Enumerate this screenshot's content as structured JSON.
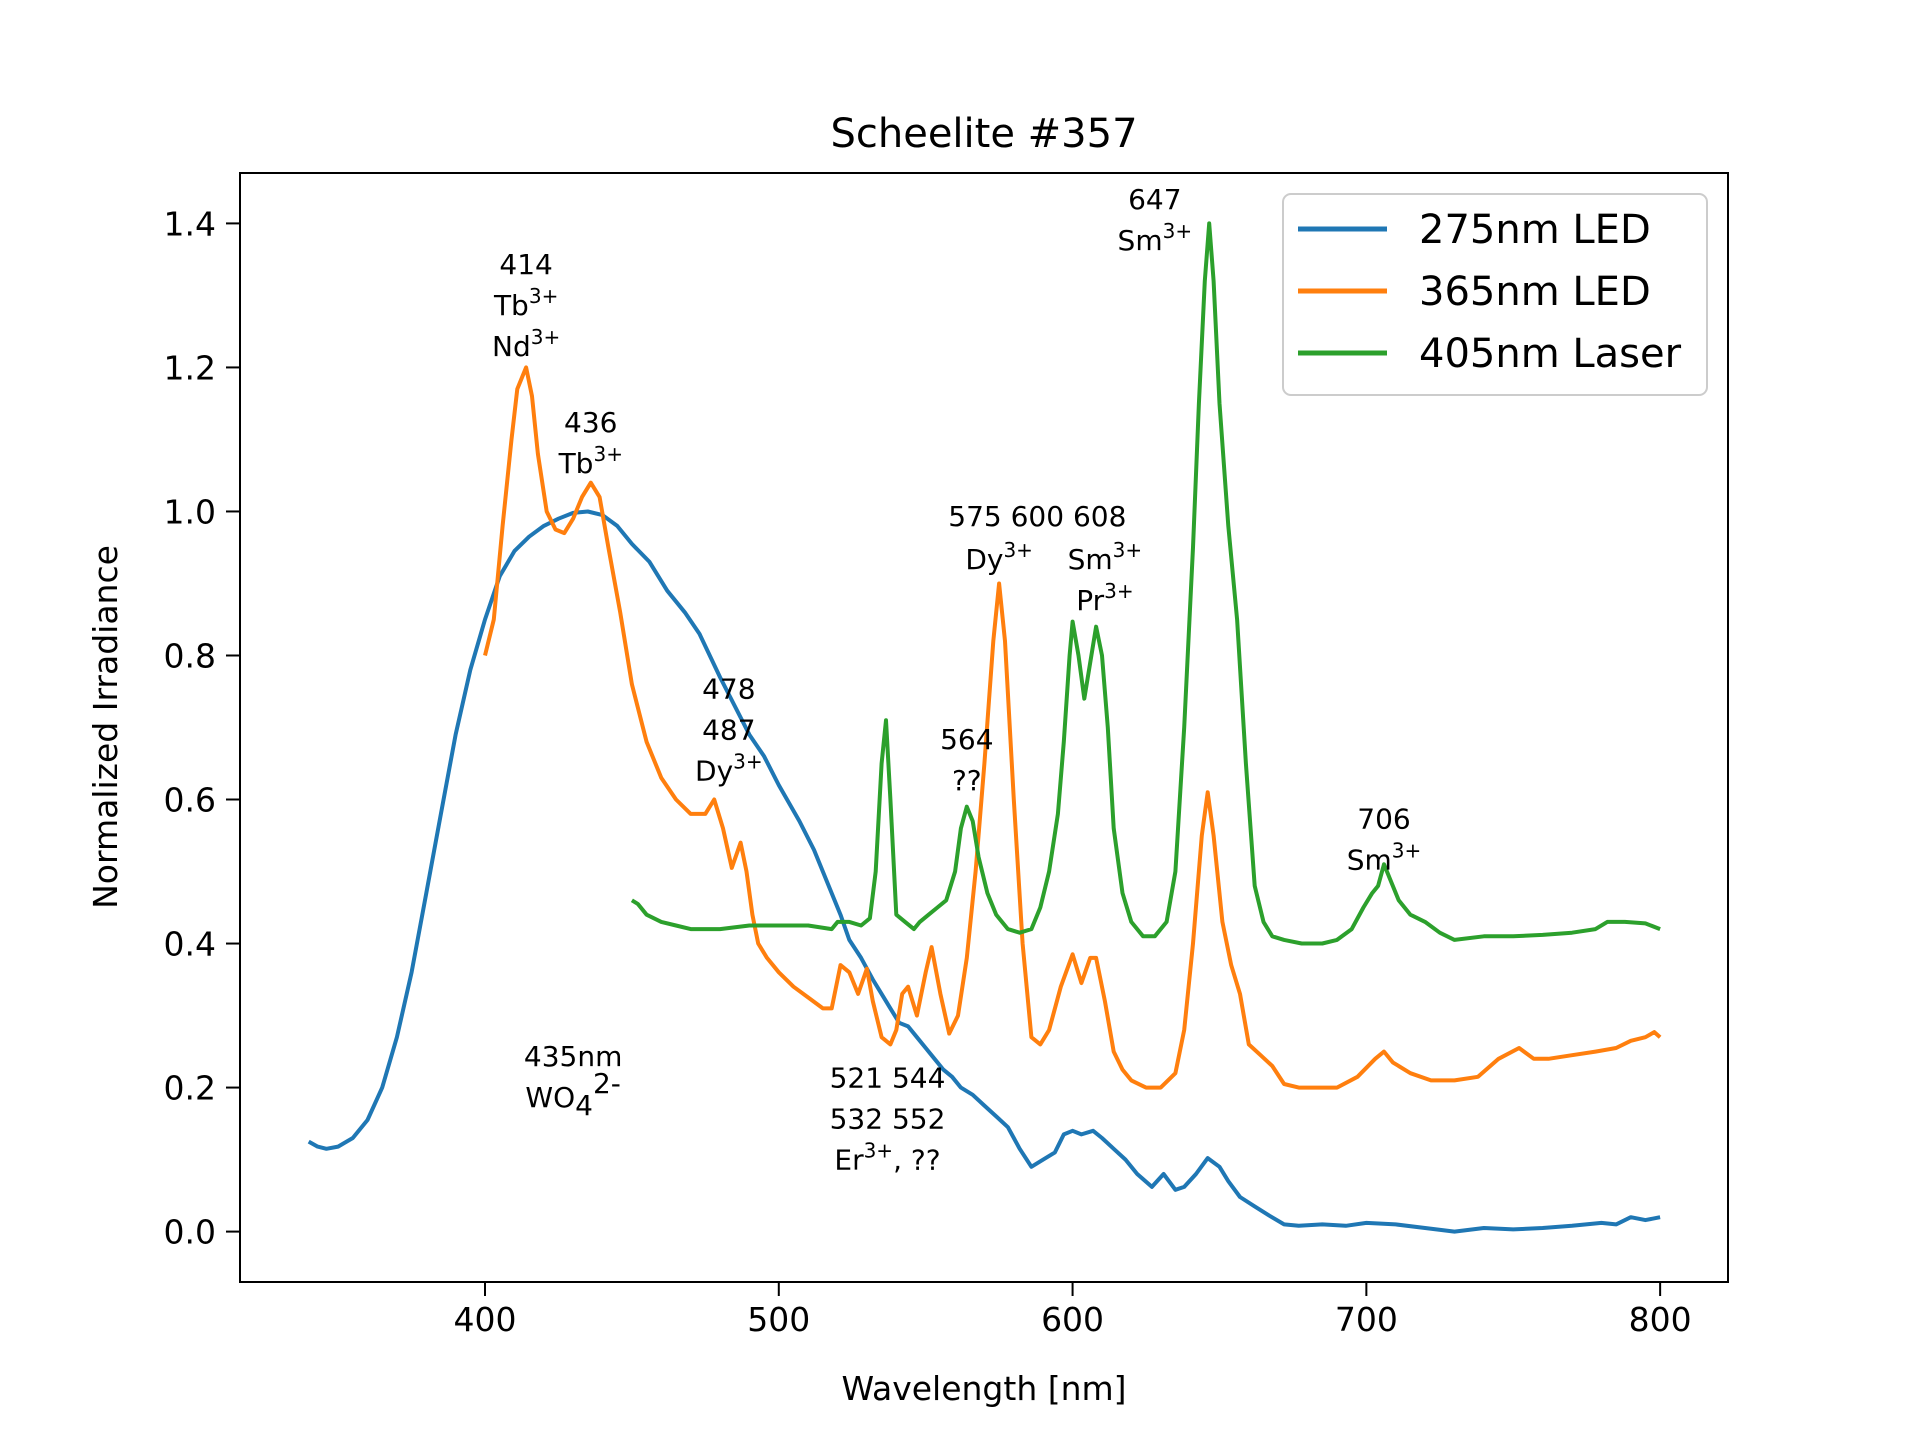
{
  "chart_data": {
    "type": "line",
    "title": "Scheelite #357",
    "xlabel": "Wavelength [nm]",
    "ylabel": "Normalized Irradiance",
    "xlim": [
      316.6,
      823.1
    ],
    "ylim": [
      -0.07,
      1.47
    ],
    "xticks": [
      400,
      500,
      600,
      700,
      800
    ],
    "xtick_labels": [
      "400",
      "500",
      "600",
      "700",
      "800"
    ],
    "yticks": [
      0.0,
      0.2,
      0.4,
      0.6,
      0.8,
      1.0,
      1.2,
      1.4
    ],
    "ytick_labels": [
      "0.0",
      "0.2",
      "0.4",
      "0.6",
      "0.8",
      "1.0",
      "1.2",
      "1.4"
    ],
    "grid": false,
    "legend_position": "top-right",
    "series": [
      {
        "name": "275nm LED",
        "color": "#1f77b4",
        "x": [
          340,
          343,
          346,
          350,
          355,
          360,
          365,
          370,
          375,
          380,
          385,
          390,
          395,
          400,
          405,
          410,
          415,
          420,
          425,
          430,
          435,
          440,
          445,
          450,
          456,
          462,
          468,
          473,
          480,
          485,
          490,
          495,
          500,
          507,
          512,
          517,
          521,
          524,
          528,
          532,
          535,
          538,
          541,
          544,
          547,
          550,
          553,
          556,
          559,
          562,
          566,
          570,
          574,
          578,
          582,
          586,
          590,
          594,
          597,
          600,
          603,
          607,
          610,
          614,
          618,
          622,
          627,
          631,
          635,
          638,
          642,
          646,
          650,
          653,
          657,
          662,
          667,
          672,
          677,
          685,
          693,
          700,
          710,
          720,
          730,
          740,
          750,
          760,
          770,
          780,
          785,
          790,
          795,
          800
        ],
        "y": [
          0.125,
          0.118,
          0.115,
          0.118,
          0.13,
          0.155,
          0.2,
          0.27,
          0.36,
          0.47,
          0.58,
          0.69,
          0.78,
          0.85,
          0.91,
          0.945,
          0.965,
          0.98,
          0.99,
          0.998,
          1.0,
          0.995,
          0.98,
          0.955,
          0.93,
          0.89,
          0.86,
          0.83,
          0.77,
          0.73,
          0.69,
          0.66,
          0.62,
          0.57,
          0.53,
          0.48,
          0.44,
          0.405,
          0.38,
          0.35,
          0.33,
          0.31,
          0.29,
          0.285,
          0.27,
          0.255,
          0.24,
          0.225,
          0.215,
          0.2,
          0.19,
          0.175,
          0.16,
          0.145,
          0.115,
          0.09,
          0.1,
          0.11,
          0.135,
          0.14,
          0.135,
          0.14,
          0.13,
          0.115,
          0.1,
          0.08,
          0.062,
          0.08,
          0.058,
          0.062,
          0.08,
          0.102,
          0.09,
          0.07,
          0.048,
          0.035,
          0.022,
          0.01,
          0.008,
          0.01,
          0.008,
          0.012,
          0.01,
          0.005,
          0.0,
          0.005,
          0.003,
          0.005,
          0.008,
          0.012,
          0.01,
          0.02,
          0.016,
          0.02
        ]
      },
      {
        "name": "365nm LED",
        "color": "#ff7f0e",
        "x": [
          400,
          403,
          406,
          409,
          411,
          414,
          416,
          418,
          421,
          424,
          427,
          430,
          433,
          436,
          439,
          442,
          446,
          450,
          455,
          460,
          465,
          470,
          475,
          478,
          481,
          484,
          487,
          489,
          491,
          493,
          496,
          500,
          505,
          510,
          515,
          518,
          521,
          524,
          527,
          530,
          532,
          535,
          538,
          540,
          542,
          544,
          547,
          550,
          552,
          555,
          558,
          561,
          564,
          567,
          570,
          573,
          575,
          577,
          580,
          583,
          586,
          589,
          592,
          596,
          600,
          603,
          606,
          608,
          611,
          614,
          617,
          620,
          625,
          630,
          635,
          638,
          641,
          644,
          646,
          648,
          651,
          654,
          657,
          660,
          664,
          668,
          672,
          677,
          683,
          690,
          697,
          703,
          706,
          709,
          715,
          722,
          730,
          738,
          745,
          752,
          757,
          762,
          770,
          778,
          785,
          790,
          795,
          798,
          800
        ],
        "y": [
          0.8,
          0.85,
          0.98,
          1.1,
          1.17,
          1.2,
          1.16,
          1.08,
          1.0,
          0.975,
          0.97,
          0.99,
          1.02,
          1.04,
          1.02,
          0.95,
          0.86,
          0.76,
          0.68,
          0.63,
          0.6,
          0.58,
          0.58,
          0.6,
          0.56,
          0.505,
          0.54,
          0.5,
          0.44,
          0.4,
          0.38,
          0.36,
          0.34,
          0.325,
          0.31,
          0.31,
          0.37,
          0.36,
          0.33,
          0.365,
          0.32,
          0.27,
          0.26,
          0.28,
          0.33,
          0.34,
          0.3,
          0.36,
          0.395,
          0.33,
          0.275,
          0.3,
          0.38,
          0.5,
          0.65,
          0.82,
          0.9,
          0.82,
          0.6,
          0.4,
          0.27,
          0.26,
          0.28,
          0.34,
          0.385,
          0.345,
          0.38,
          0.38,
          0.32,
          0.25,
          0.225,
          0.21,
          0.2,
          0.2,
          0.22,
          0.28,
          0.4,
          0.55,
          0.61,
          0.55,
          0.43,
          0.37,
          0.33,
          0.26,
          0.245,
          0.23,
          0.205,
          0.2,
          0.2,
          0.2,
          0.215,
          0.24,
          0.25,
          0.235,
          0.22,
          0.21,
          0.21,
          0.215,
          0.24,
          0.255,
          0.24,
          0.24,
          0.245,
          0.25,
          0.255,
          0.265,
          0.27,
          0.277,
          0.27
        ]
      },
      {
        "name": "405nm Laser",
        "color": "#2ca02c",
        "x": [
          450,
          452,
          455,
          460,
          465,
          470,
          480,
          490,
          500,
          510,
          518,
          520,
          524,
          528,
          531,
          533,
          535,
          536.5,
          538,
          540,
          543,
          546,
          548,
          551,
          554,
          557,
          560,
          562,
          564,
          566,
          568,
          571,
          574,
          578,
          582,
          586,
          589,
          592,
          595,
          597,
          599,
          600,
          602,
          604,
          606,
          608,
          610,
          612,
          614,
          617,
          620,
          624,
          628,
          632,
          635,
          638,
          641,
          643,
          645,
          646.5,
          648,
          650,
          653,
          656,
          659,
          662,
          665,
          668,
          672,
          678,
          685,
          690,
          695,
          699,
          702,
          704,
          706,
          708,
          711,
          715,
          720,
          725,
          730,
          740,
          750,
          760,
          770,
          778,
          782,
          788,
          795,
          800
        ],
        "y": [
          0.46,
          0.455,
          0.44,
          0.43,
          0.425,
          0.42,
          0.42,
          0.425,
          0.425,
          0.425,
          0.42,
          0.43,
          0.43,
          0.425,
          0.435,
          0.5,
          0.65,
          0.71,
          0.6,
          0.44,
          0.43,
          0.42,
          0.43,
          0.44,
          0.45,
          0.46,
          0.5,
          0.56,
          0.59,
          0.57,
          0.52,
          0.47,
          0.44,
          0.42,
          0.415,
          0.42,
          0.45,
          0.5,
          0.58,
          0.68,
          0.8,
          0.847,
          0.8,
          0.74,
          0.79,
          0.84,
          0.8,
          0.7,
          0.56,
          0.47,
          0.43,
          0.41,
          0.41,
          0.43,
          0.5,
          0.7,
          0.95,
          1.15,
          1.32,
          1.4,
          1.32,
          1.15,
          0.98,
          0.85,
          0.65,
          0.48,
          0.43,
          0.41,
          0.405,
          0.4,
          0.4,
          0.405,
          0.42,
          0.45,
          0.47,
          0.48,
          0.51,
          0.49,
          0.46,
          0.44,
          0.43,
          0.415,
          0.405,
          0.41,
          0.41,
          0.412,
          0.415,
          0.42,
          0.43,
          0.43,
          0.428,
          0.42
        ]
      }
    ],
    "annotations": [
      {
        "lines": [
          {
            "text": "414"
          },
          {
            "text": "Tb",
            "sup": "3+"
          },
          {
            "text": "Nd",
            "sup": "3+"
          }
        ],
        "x": 414,
        "y": 1.33
      },
      {
        "lines": [
          {
            "text": "436"
          },
          {
            "text": "Tb",
            "sup": "3+"
          }
        ],
        "x": 436,
        "y": 1.11
      },
      {
        "lines": [
          {
            "text": "478"
          },
          {
            "text": "487"
          },
          {
            "text": "Dy",
            "sup": "3+"
          }
        ],
        "x": 483,
        "y": 0.74
      },
      {
        "lines": [
          {
            "text": "564"
          },
          {
            "text": "??"
          }
        ],
        "x": 564,
        "y": 0.67
      },
      {
        "lines": [
          {
            "text": "575 600 608"
          }
        ],
        "x": 588,
        "y": 0.98
      },
      {
        "lines": [
          {
            "text": "Dy",
            "sup": "3+"
          }
        ],
        "x": 575,
        "y": 0.92
      },
      {
        "lines": [
          {
            "text": "Sm",
            "sup": "3+"
          },
          {
            "text": "Pr",
            "sup": "3+"
          }
        ],
        "x": 611,
        "y": 0.92
      },
      {
        "lines": [
          {
            "text": "647"
          },
          {
            "text": "Sm",
            "sup": "3+"
          }
        ],
        "x": 628,
        "y": 1.42
      },
      {
        "lines": [
          {
            "text": "706"
          },
          {
            "text": "Sm",
            "sup": "3+"
          }
        ],
        "x": 706,
        "y": 0.56
      },
      {
        "lines": [
          {
            "text": "435nm"
          },
          {
            "text": "WO",
            "sub": "4",
            "sup": "2-"
          }
        ],
        "x": 430,
        "y": 0.23
      },
      {
        "lines": [
          {
            "text": "521  544"
          },
          {
            "text": "532  552"
          },
          {
            "text": "Er",
            "sup": "3+",
            "after": ", ??"
          }
        ],
        "x": 537,
        "y": 0.2
      }
    ]
  }
}
